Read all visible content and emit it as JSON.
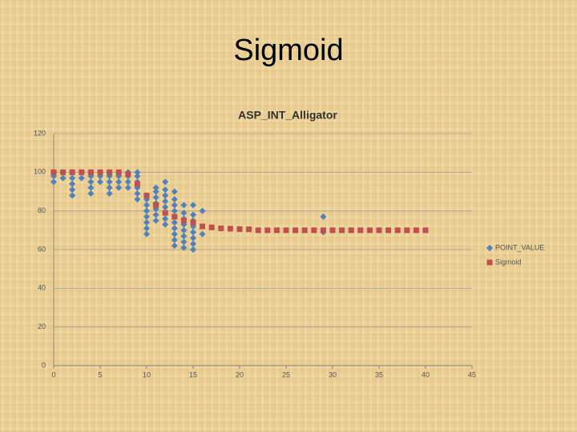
{
  "title": "Sigmoid",
  "chart_data": {
    "type": "scatter",
    "title": "ASP_INT_Alligator",
    "xlim": [
      0,
      45
    ],
    "xticks": [
      0,
      5,
      10,
      15,
      20,
      25,
      30,
      35,
      40,
      45
    ],
    "ylim": [
      0,
      120
    ],
    "yticks": [
      0,
      20,
      40,
      60,
      80,
      100,
      120
    ],
    "grid": true,
    "legend": "right",
    "series": [
      {
        "name": "POINT_VALUE",
        "color": "#4f81bd",
        "marker": "diamond",
        "x": [
          0,
          0,
          0,
          1,
          1,
          2,
          2,
          2,
          2,
          2,
          3,
          3,
          4,
          4,
          4,
          4,
          4,
          5,
          5,
          5,
          6,
          6,
          6,
          6,
          6,
          7,
          7,
          7,
          7,
          8,
          8,
          8,
          8,
          9,
          9,
          9,
          9,
          9,
          9,
          10,
          10,
          10,
          10,
          10,
          10,
          10,
          10,
          11,
          11,
          11,
          11,
          11,
          11,
          11,
          12,
          12,
          12,
          12,
          12,
          12,
          12,
          12,
          13,
          13,
          13,
          13,
          13,
          13,
          13,
          13,
          13,
          13,
          14,
          14,
          14,
          14,
          14,
          14,
          14,
          14,
          15,
          15,
          15,
          15,
          15,
          15,
          15,
          15,
          16,
          16,
          29,
          29
        ],
        "values": [
          95,
          98,
          100,
          97,
          100,
          88,
          91,
          94,
          97,
          100,
          97,
          100,
          89,
          92,
          95,
          98,
          100,
          95,
          98,
          100,
          89,
          92,
          95,
          98,
          100,
          92,
          95,
          98,
          100,
          92,
          95,
          98,
          100,
          86,
          89,
          92,
          95,
          98,
          100,
          68,
          71,
          74,
          77,
          80,
          83,
          86,
          88,
          75,
          78,
          81,
          84,
          87,
          90,
          92,
          73,
          76,
          79,
          82,
          85,
          88,
          91,
          95,
          62,
          65,
          68,
          71,
          74,
          77,
          80,
          83,
          86,
          90,
          61,
          64,
          67,
          70,
          73,
          76,
          79,
          83,
          60,
          63,
          66,
          69,
          72,
          75,
          78,
          83,
          68,
          80,
          69,
          77
        ]
      },
      {
        "name": "Sigmoid",
        "color": "#c0504d",
        "marker": "square",
        "x": [
          0,
          1,
          2,
          3,
          4,
          5,
          6,
          7,
          8,
          9,
          10,
          11,
          12,
          13,
          14,
          15,
          16,
          17,
          18,
          19,
          20,
          21,
          22,
          23,
          24,
          25,
          26,
          27,
          28,
          29,
          30,
          31,
          32,
          33,
          34,
          35,
          36,
          37,
          38,
          39,
          40
        ],
        "values": [
          100,
          100,
          100,
          100,
          100,
          100,
          100,
          100,
          99,
          94,
          88,
          83,
          79,
          77,
          75,
          74,
          72,
          71.5,
          71,
          70.8,
          70.6,
          70.5,
          70,
          70,
          70,
          70,
          70,
          70,
          70,
          70,
          70,
          70,
          70,
          70,
          70,
          70,
          70,
          70,
          70,
          70,
          70
        ]
      }
    ]
  }
}
